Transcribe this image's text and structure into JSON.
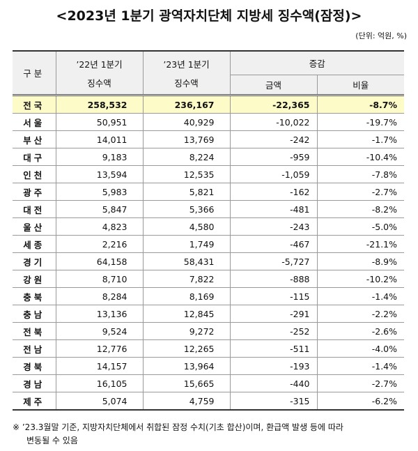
{
  "header": {
    "title": "<2023년 1분기 광역자치단체 지방세 징수액(잠정)>",
    "unit": "(단위: 억원, %)"
  },
  "table": {
    "head": {
      "region": "구분",
      "prev": [
        "’22년 1분기",
        "징수액"
      ],
      "curr": [
        "’23년 1분기",
        "징수액"
      ],
      "change": "증감",
      "amount": "금액",
      "rate": "비율"
    },
    "rows": [
      [
        "전국",
        "258,532",
        "236,167",
        "-22,365",
        "-8.7%"
      ],
      [
        "서울",
        "50,951",
        "40,929",
        "-10,022",
        "-19.7%"
      ],
      [
        "부산",
        "14,011",
        "13,769",
        "-242",
        "-1.7%"
      ],
      [
        "대구",
        "9,183",
        "8,224",
        "-959",
        "-10.4%"
      ],
      [
        "인천",
        "13,594",
        "12,535",
        "-1,059",
        "-7.8%"
      ],
      [
        "광주",
        "5,983",
        "5,821",
        "-162",
        "-2.7%"
      ],
      [
        "대전",
        "5,847",
        "5,366",
        "-481",
        "-8.2%"
      ],
      [
        "울산",
        "4,823",
        "4,580",
        "-243",
        "-5.0%"
      ],
      [
        "세종",
        "2,216",
        "1,749",
        "-467",
        "-21.1%"
      ],
      [
        "경기",
        "64,158",
        "58,431",
        "-5,727",
        "-8.9%"
      ],
      [
        "강원",
        "8,710",
        "7,822",
        "-888",
        "-10.2%"
      ],
      [
        "충북",
        "8,284",
        "8,169",
        "-115",
        "-1.4%"
      ],
      [
        "충남",
        "13,136",
        "12,845",
        "-291",
        "-2.2%"
      ],
      [
        "전북",
        "9,524",
        "9,272",
        "-252",
        "-2.6%"
      ],
      [
        "전남",
        "12,776",
        "12,265",
        "-511",
        "-4.0%"
      ],
      [
        "경북",
        "14,157",
        "13,964",
        "-193",
        "-1.4%"
      ],
      [
        "경남",
        "16,105",
        "15,665",
        "-440",
        "-2.7%"
      ],
      [
        "제주",
        "5,074",
        "4,759",
        "-315",
        "-6.2%"
      ]
    ]
  },
  "footnote": [
    "※ ’23.3월말 기준, 지방자치단체에서 취합된 잠정 수치(기초 합산)이며, 환급액 발생 등에 따라",
    "변동될 수 있음"
  ]
}
